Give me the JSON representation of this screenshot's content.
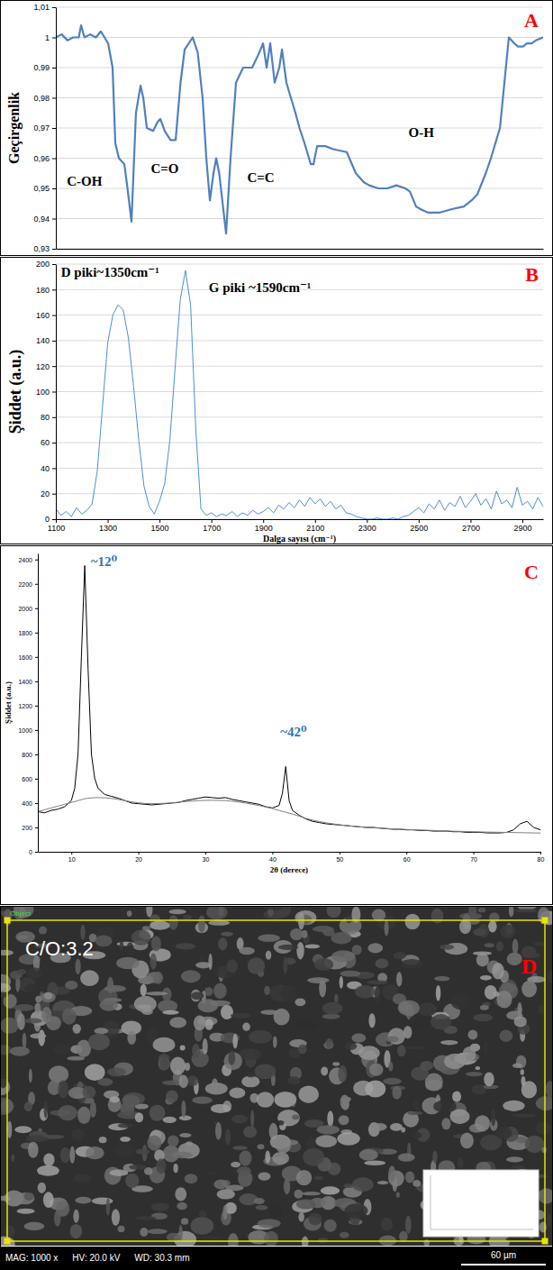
{
  "chart_data": [
    {
      "type": "line",
      "panel": "A",
      "ylabel": "Geçirgenlik",
      "tick_labels": "y",
      "grid": true,
      "xlim": [
        600,
        4000
      ],
      "xticks": [],
      "ylim": [
        0.93,
        1.01
      ],
      "yticks": [
        {
          "value": 0.93,
          "label": "0,93"
        },
        {
          "value": 0.94,
          "label": "0,94"
        },
        {
          "value": 0.95,
          "label": "0,95"
        },
        {
          "value": 0.96,
          "label": "0,96"
        },
        {
          "value": 0.97,
          "label": "0,97"
        },
        {
          "value": 0.98,
          "label": "0,98"
        },
        {
          "value": 0.99,
          "label": "0,99"
        },
        1,
        {
          "value": 1.01,
          "label": "1,01"
        }
      ],
      "x": [
        600,
        640,
        682,
        720,
        760,
        776,
        800,
        839,
        880,
        914,
        940,
        965,
        996,
        1015,
        1040,
        1078,
        1100,
        1128,
        1159,
        1191,
        1210,
        1235,
        1279,
        1310,
        1329,
        1360,
        1400,
        1436,
        1470,
        1499,
        1555,
        1590,
        1624,
        1650,
        1675,
        1700,
        1719,
        1740,
        1788,
        1819,
        1857,
        1907,
        1940,
        1970,
        2010,
        2046,
        2071,
        2096,
        2127,
        2159,
        2178,
        2209,
        2240,
        2272,
        2300,
        2335,
        2379,
        2398,
        2423,
        2480,
        2536,
        2630,
        2693,
        2750,
        2787,
        2850,
        2913,
        2976,
        3039,
        3070,
        3114,
        3150,
        3196,
        3280,
        3353,
        3447,
        3500,
        3541,
        3600,
        3636,
        3699,
        3730,
        3761,
        3800,
        3824,
        3860,
        3887,
        3920,
        3950,
        4000
      ],
      "series": [
        {
          "color": "#4f81bd",
          "values": [
            1.0,
            1.001,
            0.999,
            1.0,
            1.0,
            1.004,
            1.0,
            1.001,
            1.0,
            1.002,
            1.0,
            0.998,
            0.99,
            0.965,
            0.96,
            0.958,
            0.95,
            0.939,
            0.975,
            0.984,
            0.98,
            0.97,
            0.969,
            0.972,
            0.973,
            0.969,
            0.966,
            0.966,
            0.985,
            0.996,
            1.0,
            0.995,
            0.98,
            0.96,
            0.946,
            0.955,
            0.96,
            0.955,
            0.935,
            0.96,
            0.985,
            0.99,
            0.99,
            0.99,
            0.994,
            0.998,
            0.99,
            0.998,
            0.985,
            0.99,
            0.996,
            0.985,
            0.98,
            0.975,
            0.97,
            0.965,
            0.958,
            0.958,
            0.964,
            0.964,
            0.963,
            0.962,
            0.955,
            0.952,
            0.951,
            0.95,
            0.95,
            0.951,
            0.95,
            0.949,
            0.944,
            0.943,
            0.942,
            0.942,
            0.943,
            0.944,
            0.946,
            0.948,
            0.955,
            0.96,
            0.97,
            0.985,
            1.0,
            0.998,
            0.997,
            0.997,
            0.998,
            0.998,
            0.999,
            1.0
          ]
        }
      ],
      "annotations": [
        {
          "text": "C-OH",
          "x": 800,
          "y": 0.951,
          "color": "#000000"
        },
        {
          "text": "C=O",
          "x": 1360,
          "y": 0.955,
          "color": "#000000"
        },
        {
          "text": "C=C",
          "x": 2030,
          "y": 0.952,
          "color": "#000000"
        },
        {
          "text": "O-H",
          "x": 3150,
          "y": 0.967,
          "color": "#000000"
        }
      ]
    },
    {
      "type": "line",
      "panel": "B",
      "xlabel": "Dalga sayısı (cm⁻¹)",
      "ylabel": "Şiddet (a.u.)",
      "grid": true,
      "xlim": [
        1100,
        2980
      ],
      "xticks": [
        1100,
        1300,
        1500,
        1700,
        1900,
        2100,
        2300,
        2500,
        2700,
        2900
      ],
      "ylim": [
        0,
        200
      ],
      "yticks": [
        0,
        20,
        40,
        60,
        80,
        100,
        120,
        140,
        160,
        180,
        200
      ],
      "x": [
        1100,
        1120,
        1140,
        1160,
        1180,
        1200,
        1220,
        1240,
        1260,
        1280,
        1300,
        1320,
        1340,
        1360,
        1380,
        1400,
        1420,
        1440,
        1460,
        1480,
        1500,
        1520,
        1540,
        1560,
        1580,
        1600,
        1620,
        1640,
        1660,
        1680,
        1700,
        1720,
        1740,
        1760,
        1780,
        1800,
        1820,
        1840,
        1860,
        1880,
        1900,
        1920,
        1940,
        1960,
        1980,
        2000,
        2020,
        2040,
        2060,
        2080,
        2100,
        2120,
        2140,
        2160,
        2180,
        2200,
        2220,
        2240,
        2260,
        2280,
        2300,
        2320,
        2340,
        2360,
        2380,
        2400,
        2420,
        2440,
        2460,
        2480,
        2500,
        2520,
        2540,
        2560,
        2580,
        2600,
        2620,
        2640,
        2660,
        2680,
        2700,
        2720,
        2740,
        2760,
        2780,
        2800,
        2820,
        2840,
        2860,
        2880,
        2900,
        2920,
        2940,
        2960,
        2980
      ],
      "series": [
        {
          "color": "#4a90d9",
          "values": [
            8,
            3,
            6,
            2,
            9,
            4,
            7,
            12,
            38,
            88,
            138,
            160,
            168,
            164,
            142,
            104,
            62,
            26,
            10,
            4,
            14,
            28,
            62,
            118,
            172,
            195,
            168,
            70,
            8,
            3,
            5,
            2,
            4,
            3,
            6,
            2,
            5,
            3,
            7,
            4,
            6,
            9,
            5,
            11,
            8,
            13,
            9,
            15,
            10,
            17,
            12,
            16,
            10,
            14,
            8,
            11,
            5,
            4,
            2,
            1,
            0,
            0,
            1,
            0,
            0,
            1,
            0,
            2,
            3,
            6,
            9,
            5,
            12,
            8,
            15,
            7,
            13,
            10,
            18,
            9,
            14,
            20,
            11,
            16,
            8,
            22,
            12,
            15,
            9,
            25,
            11,
            14,
            8,
            17,
            10
          ]
        }
      ],
      "annotations": [
        {
          "text": "D piki~1350cm⁻¹",
          "x": 1120,
          "y": 190,
          "color": "#000000"
        },
        {
          "text": "G piki ~1590cm⁻¹",
          "x": 1690,
          "y": 178,
          "color": "#000000"
        }
      ]
    },
    {
      "type": "line",
      "panel": "C",
      "xlabel": "2θ (derece)",
      "ylabel": "Şiddet (a.u.)",
      "grid": false,
      "xlim": [
        5,
        80
      ],
      "xticks": [
        10,
        20,
        30,
        40,
        50,
        60,
        70,
        80
      ],
      "ylim": [
        0,
        2450
      ],
      "yticks": [
        0,
        200,
        400,
        600,
        800,
        1000,
        1200,
        1400,
        1600,
        1800,
        2000,
        2200,
        2400
      ],
      "x": [
        5,
        6,
        7,
        8,
        9,
        10,
        10.5,
        11,
        11.5,
        12,
        12.5,
        13,
        13.5,
        14,
        15,
        16,
        17,
        18,
        19,
        20,
        21,
        22,
        23,
        24,
        25,
        26,
        27,
        28,
        29,
        30,
        31,
        32,
        33,
        34,
        35,
        36,
        37,
        38,
        39,
        40,
        41,
        41.5,
        42,
        42.5,
        43,
        44,
        45,
        46,
        47,
        48,
        49,
        50,
        51,
        52,
        53,
        54,
        55,
        56,
        57,
        58,
        59,
        60,
        61,
        62,
        63,
        64,
        65,
        66,
        67,
        68,
        69,
        70,
        71,
        72,
        73,
        74,
        75,
        76,
        77,
        78,
        79,
        80
      ],
      "series": [
        {
          "color": "#000000",
          "values": [
            330,
            320,
            340,
            350,
            370,
            420,
            520,
            800,
            1600,
            2350,
            1500,
            800,
            600,
            520,
            470,
            455,
            440,
            420,
            400,
            395,
            390,
            385,
            390,
            395,
            400,
            405,
            420,
            430,
            440,
            450,
            445,
            440,
            445,
            430,
            420,
            410,
            400,
            390,
            370,
            360,
            380,
            480,
            700,
            420,
            340,
            300,
            270,
            250,
            240,
            230,
            225,
            220,
            215,
            210,
            205,
            200,
            200,
            195,
            190,
            185,
            185,
            180,
            180,
            175,
            175,
            170,
            170,
            170,
            165,
            165,
            160,
            160,
            160,
            155,
            155,
            155,
            160,
            180,
            230,
            250,
            200,
            180
          ]
        },
        {
          "color": "#808080",
          "values": [
            330,
            345,
            360,
            375,
            390,
            405,
            412,
            420,
            428,
            435,
            440,
            442,
            444,
            445,
            443,
            438,
            430,
            420,
            410,
            402,
            397,
            395,
            396,
            398,
            402,
            407,
            412,
            416,
            420,
            422,
            423,
            422,
            420,
            415,
            408,
            400,
            390,
            380,
            368,
            355,
            340,
            332,
            325,
            318,
            310,
            292,
            275,
            260,
            248,
            238,
            230,
            222,
            216,
            210,
            205,
            201,
            197,
            194,
            191,
            188,
            186,
            183,
            181,
            179,
            177,
            175,
            173,
            171,
            169,
            168,
            166,
            165,
            163,
            162,
            161,
            160,
            159,
            158,
            157,
            156,
            155,
            154
          ]
        }
      ],
      "annotations": [
        {
          "text": "~12⁰",
          "x": 12.9,
          "y": 2350,
          "color": "#2e75b6"
        },
        {
          "text": "~42⁰",
          "x": 41.2,
          "y": 950,
          "color": "#2e75b6"
        }
      ]
    }
  ],
  "sem_panel": {
    "panel": "D",
    "label": "C/O:3.2",
    "region_label": "Object",
    "info": [
      "MAG: 1000 x",
      "HV: 20.0 kV",
      "WD: 30.3 mm"
    ],
    "scale_bar": "60 µm"
  }
}
